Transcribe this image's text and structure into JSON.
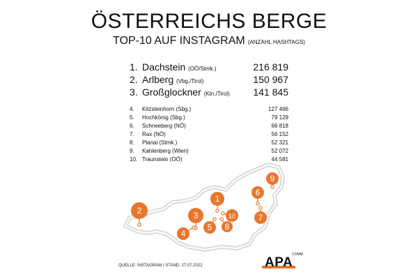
{
  "title": "ÖSTERREICHS BERGE",
  "subtitle": "TOP-10 AUF INSTAGRAM",
  "subtitle_note": "(ANZAHL HASHTAGS)",
  "footer": "QUELLE: INSTAGRAM / STAND: 27.07.2022",
  "logo": {
    "text": "APA",
    "sub": "COMM"
  },
  "colors": {
    "accent": "#e8772e",
    "map_fill": "#ffffff",
    "map_stroke": "#d9d9d9",
    "text": "#111111"
  },
  "chart_data": {
    "type": "table",
    "title": "ÖSTERREICHS BERGE",
    "subtitle": "TOP-10 AUF INSTAGRAM (ANZAHL HASHTAGS)",
    "rows": [
      {
        "rank": "1.",
        "name": "Dachstein",
        "region": "(OÖ/Stmk.)",
        "value": 216819,
        "value_label": "216 819"
      },
      {
        "rank": "2.",
        "name": "Arlberg",
        "region": "(Vbg./Tirol)",
        "value": 150967,
        "value_label": "150 967"
      },
      {
        "rank": "3.",
        "name": "Großglockner",
        "region": "(Ktn./Tirol)",
        "value": 141845,
        "value_label": "141 845"
      },
      {
        "rank": "4.",
        "name": "Kitzsteinhorn",
        "region": "(Sbg.)",
        "value": 127466,
        "value_label": "127 466"
      },
      {
        "rank": "5.",
        "name": "Hochkönig",
        "region": "(Sbg.)",
        "value": 79129,
        "value_label": "79 129"
      },
      {
        "rank": "6.",
        "name": "Schneeberg",
        "region": "(NÖ)",
        "value": 66818,
        "value_label": "66 818"
      },
      {
        "rank": "7.",
        "name": "Rax",
        "region": "(NÖ)",
        "value": 56152,
        "value_label": "56 152"
      },
      {
        "rank": "8.",
        "name": "Planai",
        "region": "(Stmk.)",
        "value": 52321,
        "value_label": "52 321"
      },
      {
        "rank": "9.",
        "name": "Kahlenberg",
        "region": "(Wien)",
        "value": 52072,
        "value_label": "52 072"
      },
      {
        "rank": "10.",
        "name": "Traunstein",
        "region": "(OÖ)",
        "value": 44581,
        "value_label": "44 581"
      }
    ],
    "map_markers": [
      "1",
      "2",
      "3",
      "4",
      "5",
      "6",
      "7",
      "8",
      "9",
      "10"
    ]
  }
}
